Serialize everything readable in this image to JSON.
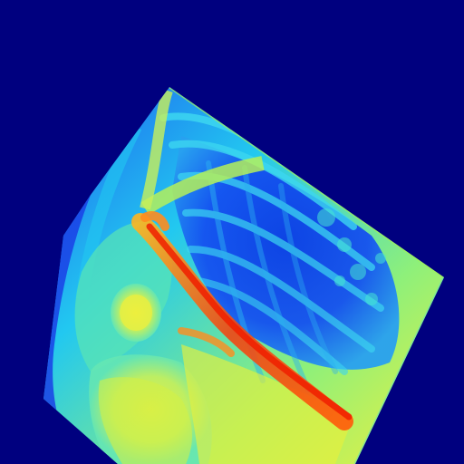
{
  "image": {
    "subject": "",
    "colors": {
      "background": "#00007f",
      "deep_blue": "#0010c8",
      "blue": "#1e5cf0",
      "cyan": "#22c8f0",
      "aqua": "#4ae6d0",
      "yellow_green": "#b4f05a",
      "yellow": "#f0f03c",
      "orange": "#ff8c1e",
      "red": "#f01e00"
    }
  }
}
